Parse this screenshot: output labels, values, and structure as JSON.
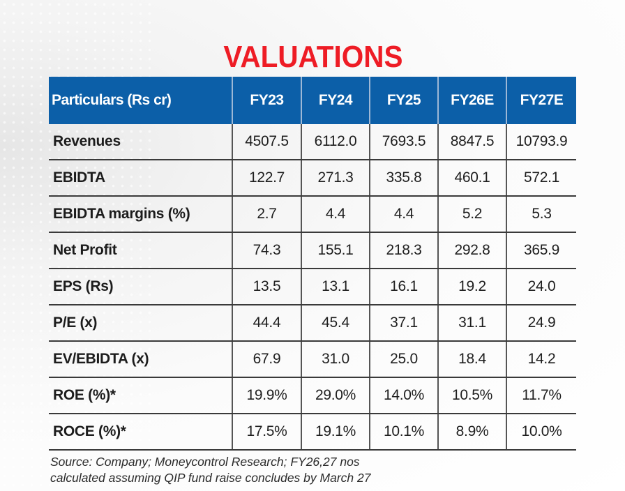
{
  "title": "VALUATIONS",
  "colors": {
    "title": "#ee1c25",
    "header_bg": "#0c5fa8",
    "header_text": "#ffffff"
  },
  "table": {
    "headers": [
      "Particulars (Rs cr)",
      "FY23",
      "FY24",
      "FY25",
      "FY26E",
      "FY27E"
    ],
    "rows": [
      {
        "label": "Revenues",
        "values": [
          "4507.5",
          "6112.0",
          "7693.5",
          "8847.5",
          "10793.9"
        ]
      },
      {
        "label": "EBIDTA",
        "values": [
          "122.7",
          "271.3",
          "335.8",
          "460.1",
          "572.1"
        ]
      },
      {
        "label": "EBIDTA margins (%)",
        "values": [
          "2.7",
          "4.4",
          "4.4",
          "5.2",
          "5.3"
        ]
      },
      {
        "label": "Net Profit",
        "values": [
          "74.3",
          "155.1",
          "218.3",
          "292.8",
          "365.9"
        ]
      },
      {
        "label": "EPS (Rs)",
        "values": [
          "13.5",
          "13.1",
          "16.1",
          "19.2",
          "24.0"
        ]
      },
      {
        "label": "P/E (x)",
        "values": [
          "44.4",
          "45.4",
          "37.1",
          "31.1",
          "24.9"
        ]
      },
      {
        "label": "EV/EBIDTA (x)",
        "values": [
          "67.9",
          "31.0",
          "25.0",
          "18.4",
          "14.2"
        ]
      },
      {
        "label": "ROE (%)*",
        "values": [
          "19.9%",
          "29.0%",
          "14.0%",
          "10.5%",
          "11.7%"
        ]
      },
      {
        "label": "ROCE (%)*",
        "values": [
          "17.5%",
          "19.1%",
          "10.1%",
          "8.9%",
          "10.0%"
        ]
      }
    ]
  },
  "footnote": {
    "line1": "Source: Company; Moneycontrol Research; FY26,27 nos",
    "line2": "calculated assuming QIP fund raise concludes by March 27"
  }
}
